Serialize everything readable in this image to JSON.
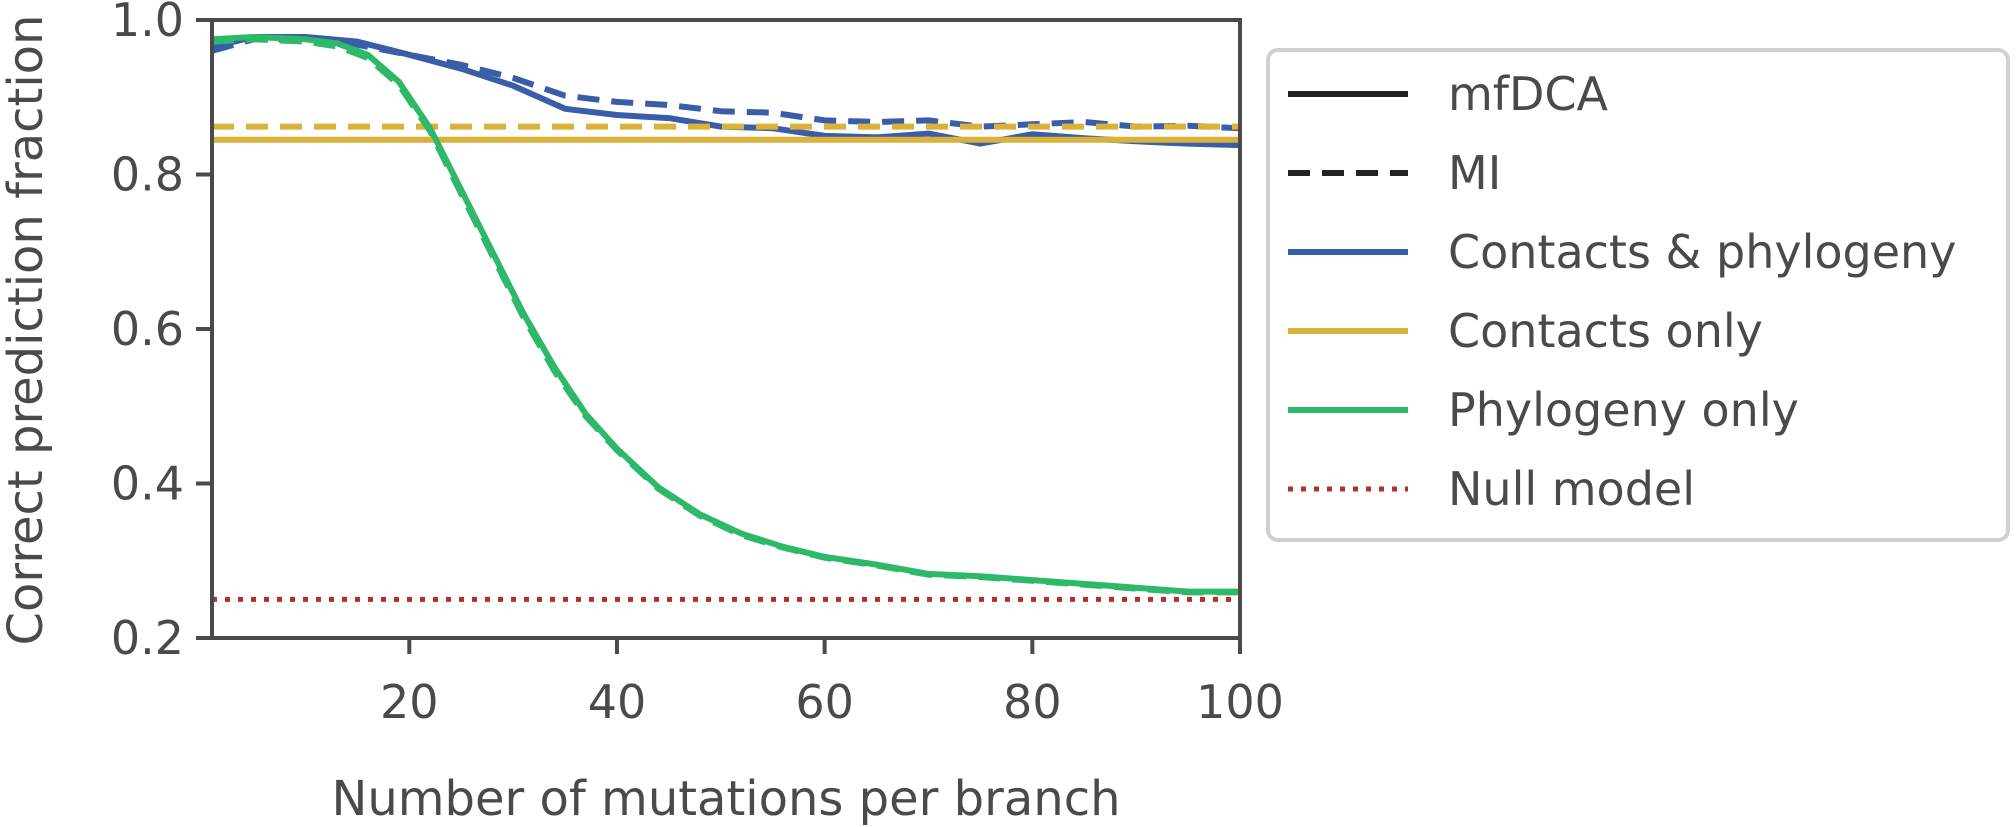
{
  "chart_data": {
    "type": "line",
    "title": "",
    "xlabel": "Number of mutations per branch",
    "ylabel": "Correct prediction fraction",
    "xlim": [
      1,
      100
    ],
    "ylim": [
      0.2,
      1.0
    ],
    "xticks": [
      20,
      40,
      60,
      80,
      100
    ],
    "xtick_labels": [
      "20",
      "40",
      "60",
      "80",
      "100"
    ],
    "yticks": [
      0.2,
      0.4,
      0.6,
      0.8,
      1.0
    ],
    "ytick_labels": [
      "0.2",
      "0.4",
      "0.6",
      "0.8",
      "1.0"
    ],
    "grid": false,
    "legend_position": "outside-right",
    "legend": [
      {
        "label": "mfDCA",
        "color": "#222222",
        "style": "solid"
      },
      {
        "label": "MI",
        "color": "#222222",
        "style": "dashed"
      },
      {
        "label": "Contacts & phylogeny",
        "color": "#3a5da8",
        "style": "solid"
      },
      {
        "label": "Contacts only",
        "color": "#d9b13b",
        "style": "solid"
      },
      {
        "label": "Phylogeny only",
        "color": "#2db86a",
        "style": "solid"
      },
      {
        "label": "Null model",
        "color": "#b0322b",
        "style": "dotted"
      }
    ],
    "series": [
      {
        "group": "Contacts & phylogeny",
        "method": "mfDCA",
        "color": "#3a5da8",
        "style": "solid",
        "x": [
          1,
          5,
          10,
          15,
          20,
          25,
          30,
          35,
          40,
          45,
          50,
          55,
          60,
          65,
          70,
          75,
          80,
          85,
          90,
          95,
          100
        ],
        "y": [
          0.965,
          0.978,
          0.978,
          0.972,
          0.955,
          0.937,
          0.915,
          0.885,
          0.877,
          0.873,
          0.862,
          0.86,
          0.85,
          0.848,
          0.853,
          0.84,
          0.852,
          0.847,
          0.843,
          0.84,
          0.838
        ]
      },
      {
        "group": "Contacts & phylogeny",
        "method": "MI",
        "color": "#3a5da8",
        "style": "dashed",
        "x": [
          1,
          5,
          10,
          15,
          20,
          25,
          30,
          35,
          40,
          45,
          50,
          55,
          60,
          65,
          70,
          75,
          80,
          85,
          90,
          95,
          100
        ],
        "y": [
          0.96,
          0.975,
          0.975,
          0.968,
          0.955,
          0.942,
          0.925,
          0.902,
          0.894,
          0.89,
          0.882,
          0.88,
          0.87,
          0.868,
          0.87,
          0.862,
          0.865,
          0.868,
          0.862,
          0.863,
          0.86
        ]
      },
      {
        "group": "Contacts only",
        "method": "mfDCA",
        "color": "#d9b13b",
        "style": "solid",
        "x": [
          1,
          100
        ],
        "y": [
          0.845,
          0.845
        ]
      },
      {
        "group": "Contacts only",
        "method": "MI",
        "color": "#d9b13b",
        "style": "dashed",
        "x": [
          1,
          100
        ],
        "y": [
          0.862,
          0.862
        ]
      },
      {
        "group": "Phylogeny only",
        "method": "mfDCA",
        "color": "#2db86a",
        "style": "solid",
        "x": [
          1,
          5,
          10,
          13,
          16,
          19,
          22,
          25,
          28,
          31,
          34,
          37,
          40,
          44,
          48,
          52,
          56,
          60,
          65,
          70,
          75,
          80,
          85,
          90,
          95,
          100
        ],
        "y": [
          0.975,
          0.978,
          0.975,
          0.97,
          0.955,
          0.92,
          0.86,
          0.78,
          0.7,
          0.62,
          0.55,
          0.49,
          0.445,
          0.395,
          0.36,
          0.335,
          0.318,
          0.305,
          0.295,
          0.283,
          0.28,
          0.275,
          0.27,
          0.265,
          0.26,
          0.26
        ]
      },
      {
        "group": "Phylogeny only",
        "method": "MI",
        "color": "#2db86a",
        "style": "dashed",
        "x": [
          1,
          5,
          10,
          13,
          16,
          19,
          22,
          25,
          28,
          31,
          34,
          37,
          40,
          44,
          48,
          52,
          56,
          60,
          65,
          70,
          75,
          80,
          85,
          90,
          95,
          100
        ],
        "y": [
          0.972,
          0.975,
          0.972,
          0.966,
          0.951,
          0.916,
          0.856,
          0.775,
          0.695,
          0.615,
          0.545,
          0.487,
          0.443,
          0.393,
          0.358,
          0.333,
          0.317,
          0.304,
          0.294,
          0.282,
          0.279,
          0.274,
          0.269,
          0.264,
          0.259,
          0.259
        ]
      },
      {
        "group": "Null model",
        "method": "",
        "color": "#b0322b",
        "style": "dotted",
        "x": [
          1,
          100
        ],
        "y": [
          0.25,
          0.25
        ]
      }
    ]
  }
}
